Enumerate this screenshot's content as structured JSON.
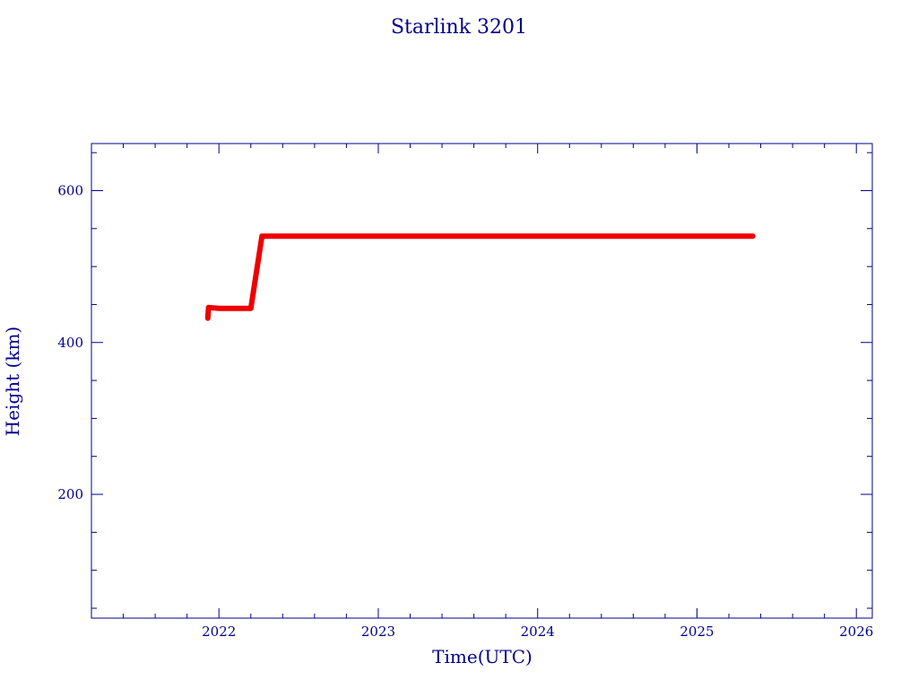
{
  "chart_data": {
    "type": "line",
    "title": "Starlink 3201",
    "xlabel": "Time(UTC)",
    "ylabel": "Height (km)",
    "xlim": [
      2021.2,
      2026.1
    ],
    "ylim": [
      37,
      662
    ],
    "x_ticks": [
      2022,
      2023,
      2024,
      2025,
      2026
    ],
    "y_ticks": [
      200,
      400,
      600
    ],
    "grid": false,
    "legend": "none",
    "series_color": "#ee0000",
    "axis_color": "#00008b",
    "series": [
      {
        "points": [
          [
            2021.93,
            432
          ],
          [
            2021.935,
            446
          ],
          [
            2022.0,
            445
          ],
          [
            2022.1,
            445
          ],
          [
            2022.2,
            445
          ],
          [
            2022.27,
            540
          ],
          [
            2022.5,
            540
          ],
          [
            2023.0,
            540
          ],
          [
            2023.5,
            540
          ],
          [
            2024.0,
            540
          ],
          [
            2024.5,
            540
          ],
          [
            2025.0,
            540
          ],
          [
            2025.35,
            540
          ]
        ]
      }
    ]
  }
}
